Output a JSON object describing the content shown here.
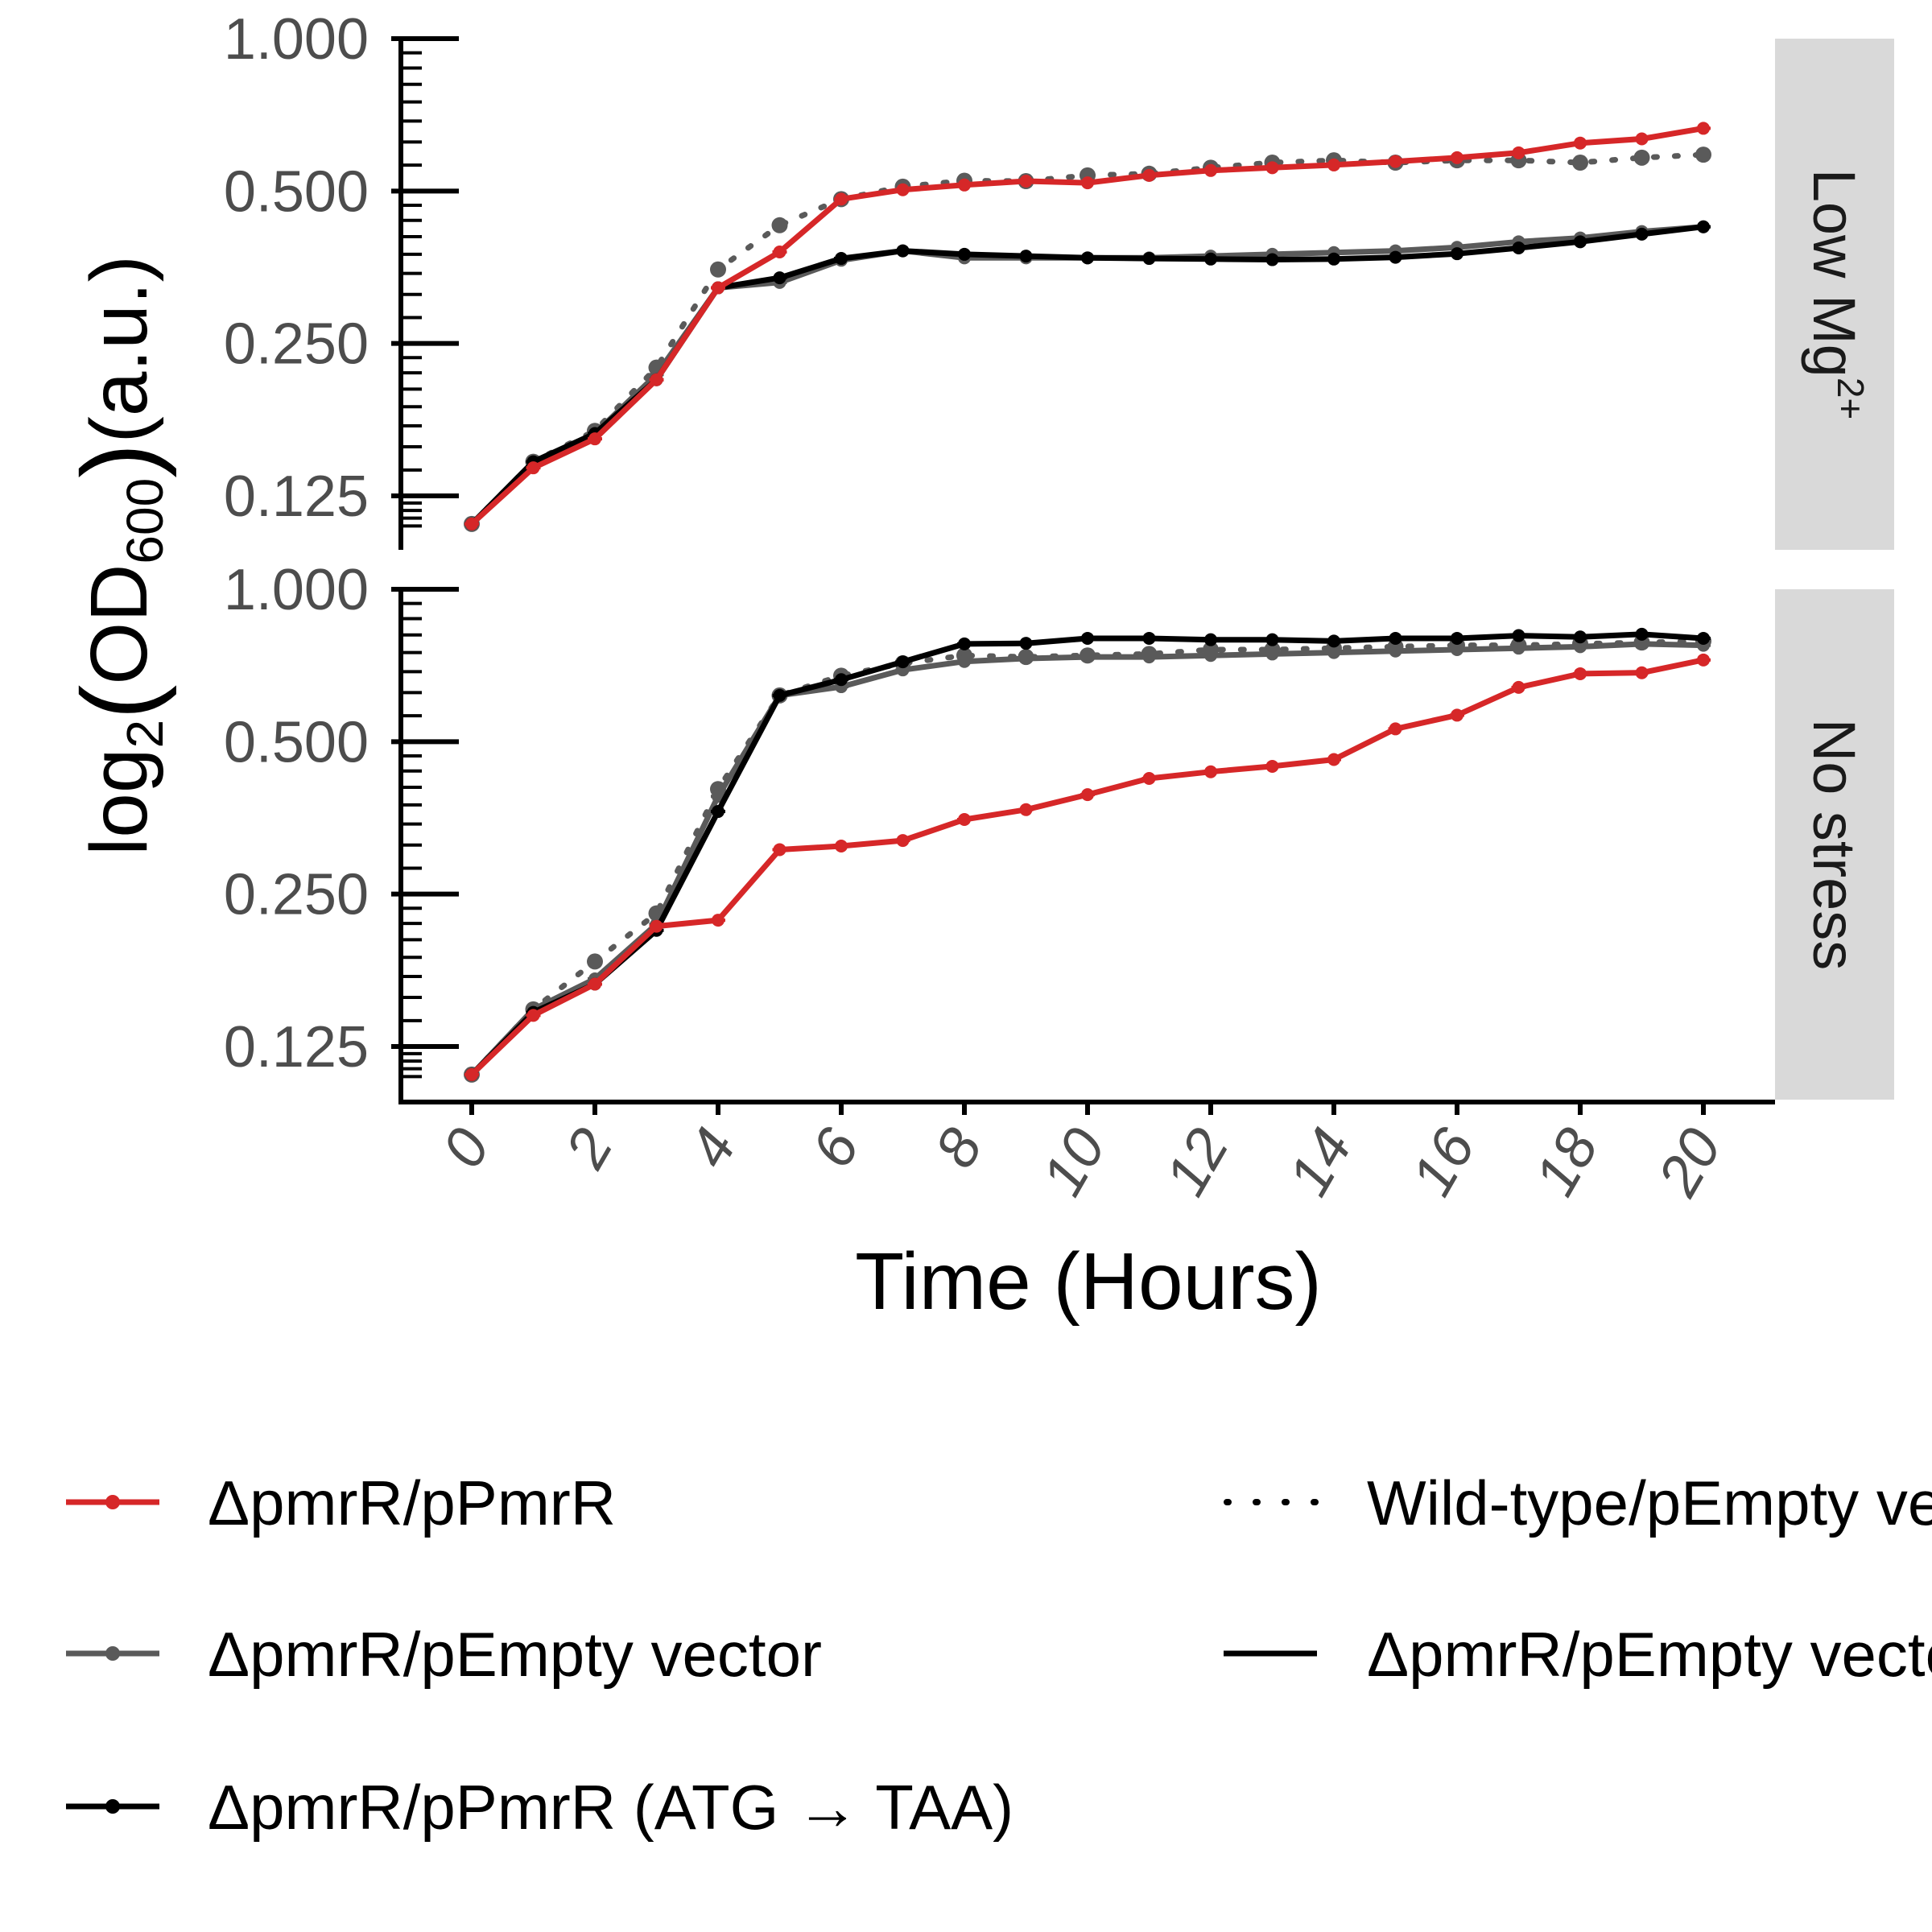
{
  "chart_data": {
    "type": "line",
    "xlabel": "Time (Hours)",
    "ylabel": {
      "prefix": "log",
      "sub1": "2",
      "open": "(",
      "mid": "OD",
      "sub2": "600",
      "close": ")",
      "suffix": "(a.u.)"
    },
    "x_ticks": [
      0,
      2,
      4,
      6,
      8,
      10,
      12,
      14,
      16,
      18,
      20
    ],
    "y_scale": "log2",
    "y_ticks": [
      {
        "value": 0.125,
        "label": "0.125"
      },
      {
        "value": 0.25,
        "label": "0.250"
      },
      {
        "value": 0.5,
        "label": "0.500"
      },
      {
        "value": 1.0,
        "label": "1.000"
      }
    ],
    "xlim": [
      0,
      20
    ],
    "ylim": [
      0.108,
      1.0
    ],
    "grid": false,
    "legend_placement": "bottom",
    "colors": {
      "red": "#d62728",
      "grey": "#5a5a5a",
      "black": "#000000",
      "strip_bg": "#d9d9d9"
    },
    "legend": [
      {
        "label": "ΔpmrR/pPmrR",
        "color": "#d62728",
        "style": "point-line"
      },
      {
        "label": "ΔpmrR/pEmpty vector",
        "color": "#5a5a5a",
        "style": "point-line"
      },
      {
        "label": "ΔpmrR/pPmrR (ATG → TAA)",
        "color": "#000000",
        "style": "point-line"
      },
      {
        "label": "Wild-type/pEmpty vector",
        "style": "dotted"
      },
      {
        "label": "ΔpmrR/pEmpty vector",
        "style": "solid"
      }
    ],
    "panels": [
      {
        "strip": {
          "main": "Low Mg",
          "sup": "2+"
        },
        "series": [
          {
            "name": "ΔpmrR/pPmrR",
            "color": "#d62728",
            "dash": "solid",
            "x": [
              0,
              1,
              2,
              3,
              4,
              5,
              6,
              7,
              8,
              9,
              10,
              11,
              12,
              13,
              14,
              15,
              16,
              17,
              18,
              19,
              20
            ],
            "y": [
              0.11,
              0.142,
              0.162,
              0.212,
              0.322,
              0.379,
              0.482,
              0.503,
              0.514,
              0.523,
              0.519,
              0.537,
              0.549,
              0.556,
              0.563,
              0.572,
              0.582,
              0.595,
              0.622,
              0.634,
              0.665
            ]
          },
          {
            "name": "Wild-type/pEmpty vector",
            "color": "#5a5a5a",
            "dash": "dotted",
            "x": [
              0,
              1,
              2,
              3,
              4,
              5,
              6,
              7,
              8,
              9,
              10,
              11,
              12,
              13,
              14,
              15,
              16,
              17,
              18,
              19,
              20
            ],
            "y": [
              0.11,
              0.146,
              0.168,
              0.224,
              0.35,
              0.428,
              0.482,
              0.51,
              0.524,
              0.523,
              0.537,
              0.541,
              0.556,
              0.569,
              0.575,
              0.569,
              0.575,
              0.575,
              0.569,
              0.582,
              0.59
            ]
          },
          {
            "name": "ΔpmrR/pEmpty vector",
            "color": "#5a5a5a",
            "dash": "solid",
            "x": [
              0,
              1,
              2,
              3,
              4,
              5,
              6,
              7,
              8,
              9,
              10,
              11,
              12,
              13,
              14,
              15,
              16,
              17,
              18,
              19,
              20
            ],
            "y": [
              0.11,
              0.144,
              0.166,
              0.217,
              0.322,
              0.33,
              0.365,
              0.381,
              0.369,
              0.369,
              0.369,
              0.369,
              0.372,
              0.375,
              0.378,
              0.381,
              0.387,
              0.397,
              0.404,
              0.416,
              0.425
            ]
          },
          {
            "name": "ΔpmrR/pPmrR (ATG → TAA)",
            "color": "#000000",
            "dash": "solid",
            "x": [
              0,
              1,
              2,
              3,
              4,
              5,
              6,
              7,
              8,
              9,
              10,
              11,
              12,
              13,
              14,
              15,
              16,
              17,
              18,
              19,
              20
            ],
            "y": [
              0.11,
              0.146,
              0.166,
              0.212,
              0.322,
              0.337,
              0.368,
              0.381,
              0.375,
              0.372,
              0.369,
              0.368,
              0.367,
              0.366,
              0.367,
              0.37,
              0.376,
              0.386,
              0.397,
              0.411,
              0.425
            ]
          }
        ]
      },
      {
        "strip": {
          "main": "No stress",
          "sup": ""
        },
        "series": [
          {
            "name": "ΔpmrR/pPmrR",
            "color": "#d62728",
            "dash": "solid",
            "x": [
              0,
              1,
              2,
              3,
              4,
              5,
              6,
              7,
              8,
              9,
              10,
              11,
              12,
              13,
              14,
              15,
              16,
              17,
              18,
              19,
              20
            ],
            "y": [
              0.11,
              0.144,
              0.166,
              0.216,
              0.222,
              0.306,
              0.311,
              0.319,
              0.351,
              0.367,
              0.393,
              0.423,
              0.436,
              0.447,
              0.461,
              0.53,
              0.564,
              0.64,
              0.681,
              0.684,
              0.725
            ]
          },
          {
            "name": "Wild-type/pEmpty vector",
            "color": "#5a5a5a",
            "dash": "dotted",
            "x": [
              0,
              1,
              2,
              3,
              4,
              5,
              6,
              7,
              8,
              9,
              10,
              11,
              12,
              13,
              14,
              15,
              16,
              17,
              18,
              19,
              20
            ],
            "y": [
              0.11,
              0.148,
              0.184,
              0.229,
              0.403,
              0.617,
              0.675,
              0.714,
              0.74,
              0.735,
              0.74,
              0.745,
              0.76,
              0.76,
              0.765,
              0.77,
              0.775,
              0.775,
              0.78,
              0.785,
              0.79
            ]
          },
          {
            "name": "ΔpmrR/pEmpty vector",
            "color": "#5a5a5a",
            "dash": "solid",
            "x": [
              0,
              1,
              2,
              3,
              4,
              5,
              6,
              7,
              8,
              9,
              10,
              11,
              12,
              13,
              14,
              15,
              16,
              17,
              18,
              19,
              20
            ],
            "y": [
              0.11,
              0.148,
              0.17,
              0.218,
              0.39,
              0.617,
              0.642,
              0.693,
              0.72,
              0.73,
              0.735,
              0.735,
              0.74,
              0.745,
              0.75,
              0.755,
              0.76,
              0.765,
              0.77,
              0.78,
              0.775
            ]
          },
          {
            "name": "ΔpmrR/pPmrR (ATG → TAA)",
            "color": "#000000",
            "dash": "solid",
            "x": [
              0,
              1,
              2,
              3,
              4,
              5,
              6,
              7,
              8,
              9,
              10,
              11,
              12,
              13,
              14,
              15,
              16,
              17,
              18,
              19,
              20
            ],
            "y": [
              0.11,
              0.146,
              0.166,
              0.212,
              0.364,
              0.617,
              0.663,
              0.719,
              0.78,
              0.782,
              0.8,
              0.8,
              0.795,
              0.795,
              0.79,
              0.8,
              0.8,
              0.81,
              0.805,
              0.815,
              0.8
            ]
          }
        ]
      }
    ]
  }
}
